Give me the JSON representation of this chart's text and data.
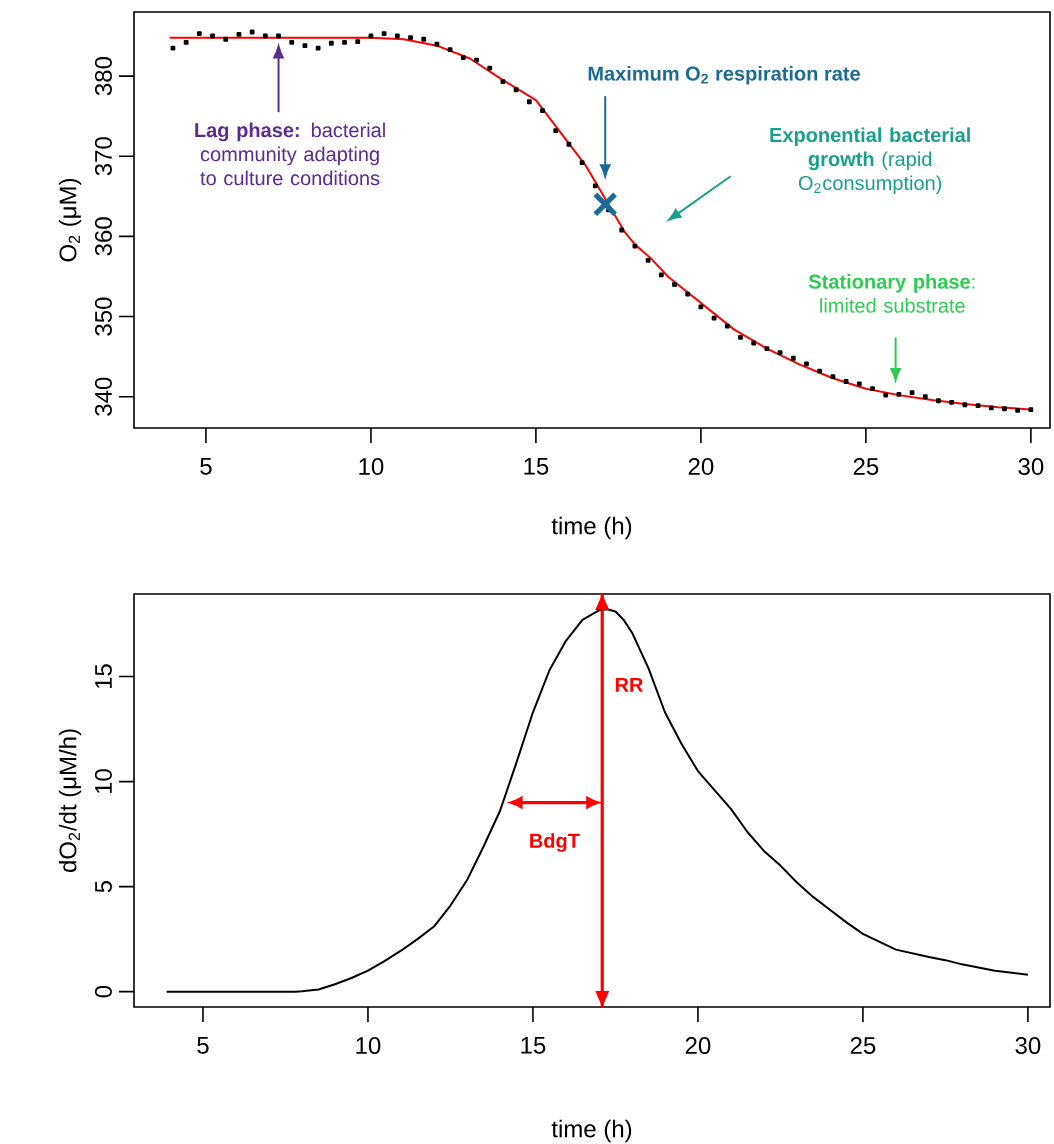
{
  "chart_data": [
    {
      "type": "line",
      "xlabel": "time (h)",
      "ylabel": "O$_{2}$ (μM)",
      "xlim": [
        2.82,
        30.58
      ],
      "ylim": [
        336.1,
        388
      ],
      "xticks": [
        5,
        10,
        15,
        20,
        25,
        30
      ],
      "yticks": [
        340,
        350,
        360,
        370,
        380
      ],
      "series": [
        {
          "type": "scatter",
          "marker": "square",
          "color": "#000000",
          "x": [
            4.0,
            4.4,
            4.8,
            5.2,
            5.6,
            6.0,
            6.4,
            6.8,
            7.2,
            7.6,
            8.0,
            8.4,
            8.8,
            9.2,
            9.6,
            10.0,
            10.4,
            10.8,
            11.2,
            11.6,
            12.0,
            12.4,
            12.8,
            13.2,
            13.6,
            14.0,
            14.4,
            14.8,
            15.2,
            15.6,
            16.0,
            16.4,
            16.8,
            17.2,
            17.6,
            18.0,
            18.4,
            18.8,
            19.2,
            19.6,
            20.0,
            20.4,
            20.8,
            21.2,
            21.6,
            22.0,
            22.4,
            22.8,
            23.2,
            23.6,
            24.0,
            24.4,
            24.8,
            25.2,
            25.6,
            26.0,
            26.4,
            26.8,
            27.2,
            27.6,
            28.0,
            28.4,
            28.8,
            29.2,
            29.6,
            30.0
          ],
          "values": [
            383.5,
            384.2,
            385.3,
            385.0,
            384.6,
            385.2,
            385.5,
            385.0,
            385.0,
            384.2,
            383.8,
            383.5,
            384.1,
            384.2,
            384.3,
            385.0,
            385.3,
            385.0,
            384.8,
            384.6,
            384.0,
            383.3,
            382.3,
            382.0,
            381.0,
            379.3,
            378.3,
            376.8,
            375.7,
            373.2,
            371.5,
            369.2,
            366.3,
            363.3,
            360.8,
            358.8,
            357.0,
            355.2,
            354.0,
            352.8,
            351.2,
            349.8,
            348.8,
            347.4,
            346.7,
            346.0,
            345.5,
            344.8,
            344.1,
            343.2,
            342.5,
            341.9,
            341.6,
            341.0,
            340.2,
            340.3,
            340.5,
            340.0,
            339.5,
            339.3,
            339.0,
            338.9,
            338.6,
            338.5,
            338.3,
            338.4
          ]
        },
        {
          "type": "line",
          "color": "#ff0000",
          "x": [
            3.9,
            8,
            10,
            11,
            12,
            13,
            14,
            15,
            16,
            16.5,
            17.7,
            18,
            18.5,
            19,
            20,
            21,
            22,
            23,
            24,
            25,
            26,
            27,
            28,
            29,
            30
          ],
          "values": [
            384.8,
            384.8,
            384.8,
            384.6,
            383.8,
            382.2,
            379.5,
            377.0,
            371.6,
            368.9,
            360.5,
            359.0,
            357.2,
            355.0,
            351.7,
            348.4,
            346.0,
            344.0,
            342.3,
            341.0,
            340.2,
            339.6,
            339.1,
            338.7,
            338.4
          ]
        },
        {
          "type": "scatter",
          "marker": "cross",
          "color": "#1b6b93",
          "x": [
            17.1
          ],
          "values": [
            364.0
          ]
        }
      ],
      "annotations": [
        "**Lag phase:** bacterial community adapting to culture conditions",
        "Maximum O$_{2}$ respiration rate",
        "**Exponential bacterial growth** (rapid O$_{2}$consumption)",
        "**Stationary phase**: limited substrate"
      ]
    },
    {
      "type": "line",
      "xlabel": "time (h)",
      "ylabel": "dO$_{2}$/dt (μM/h)",
      "xlim": [
        2.91,
        30.67
      ],
      "ylim": [
        -0.73,
        18.93
      ],
      "xticks": [
        5,
        10,
        15,
        20,
        25,
        30
      ],
      "yticks": [
        0,
        5,
        10,
        15
      ],
      "series": [
        {
          "type": "line",
          "color": "#000000",
          "x": [
            3.9,
            5,
            6,
            7,
            7.8,
            8,
            8.5,
            9,
            9.5,
            10,
            10.5,
            11,
            11.5,
            12,
            12.5,
            13,
            13.5,
            14,
            14.5,
            15,
            15.5,
            16,
            16.5,
            17,
            17.25,
            17.5,
            17.75,
            18,
            18.5,
            19,
            19.5,
            20,
            20.5,
            21,
            21.5,
            22,
            22.5,
            23,
            23.5,
            24,
            24.5,
            25,
            26,
            27,
            27.5,
            28,
            29,
            30
          ],
          "values": [
            0,
            0,
            0,
            0,
            0,
            0.02,
            0.1,
            0.35,
            0.65,
            1.0,
            1.45,
            1.95,
            2.5,
            3.1,
            4.1,
            5.3,
            6.9,
            8.6,
            10.9,
            13.3,
            15.3,
            16.7,
            17.7,
            18.15,
            18.2,
            18.1,
            17.7,
            17.1,
            15.4,
            13.3,
            11.8,
            10.5,
            9.6,
            8.7,
            7.6,
            6.7,
            6.0,
            5.2,
            4.5,
            3.9,
            3.3,
            2.75,
            2.0,
            1.65,
            1.5,
            1.3,
            1.0,
            0.8
          ]
        }
      ],
      "annotations": [
        "BdgT"
      ],
      "ref_lines": [
        {
          "axis": "x",
          "value": 17.1,
          "label": "RR",
          "color": "#ff0000"
        }
      ]
    }
  ]
}
